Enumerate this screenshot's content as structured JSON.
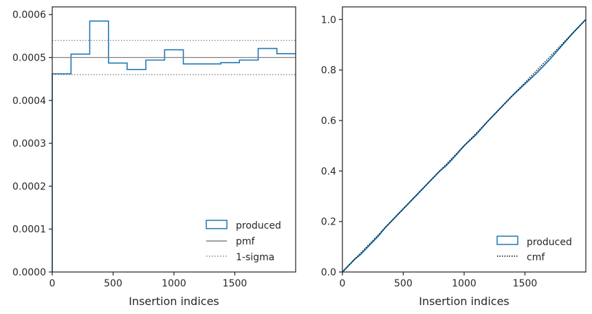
{
  "chart_data": [
    {
      "type": "histogram-step",
      "xlabel": "Insertion indices",
      "ylabel": "",
      "xlim": [
        0,
        2000
      ],
      "ylim": [
        0,
        0.000618
      ],
      "xticks": [
        0,
        500,
        1000,
        1500
      ],
      "xtick_labels": [
        "0",
        "500",
        "1000",
        "1500"
      ],
      "yticks": [
        0,
        0.0001,
        0.0002,
        0.0003,
        0.0004,
        0.0005,
        0.0006
      ],
      "ytick_labels": [
        "0.0000",
        "0.0001",
        "0.0002",
        "0.0003",
        "0.0004",
        "0.0005",
        "0.0006"
      ],
      "grid": false,
      "legend_position": "lower-right",
      "series": [
        {
          "name": "produced",
          "kind": "step",
          "color": "#1f77b4",
          "bin_edges": [
            0,
            154,
            308,
            462,
            615,
            769,
            923,
            1077,
            1231,
            1385,
            1538,
            1692,
            1846,
            2000
          ],
          "values": [
            0.000462,
            0.000508,
            0.000585,
            0.000487,
            0.000472,
            0.000494,
            0.000518,
            0.000485,
            0.000485,
            0.000488,
            0.000494,
            0.000521,
            0.000509
          ]
        },
        {
          "name": "pmf",
          "kind": "hline",
          "color": "#808080",
          "value": 0.0005
        },
        {
          "name": "1-sigma",
          "kind": "hlines-dotted",
          "color": "#808080",
          "values": [
            0.00046,
            0.00054
          ]
        }
      ]
    },
    {
      "type": "line",
      "xlabel": "Insertion indices",
      "ylabel": "",
      "xlim": [
        0,
        2000
      ],
      "ylim": [
        0,
        1.05
      ],
      "xticks": [
        0,
        500,
        1000,
        1500
      ],
      "xtick_labels": [
        "0",
        "500",
        "1000",
        "1500"
      ],
      "yticks": [
        0,
        0.2,
        0.4,
        0.6,
        0.8,
        1.0
      ],
      "ytick_labels": [
        "0.0",
        "0.2",
        "0.4",
        "0.6",
        "0.8",
        "1.0"
      ],
      "grid": false,
      "legend_position": "lower-right",
      "series": [
        {
          "name": "produced",
          "kind": "line",
          "color": "#1f77b4",
          "x": [
            0,
            50,
            100,
            150,
            200,
            250,
            300,
            350,
            400,
            450,
            500,
            600,
            700,
            800,
            850,
            900,
            1000,
            1100,
            1200,
            1300,
            1400,
            1500,
            1600,
            1700,
            1800,
            1900,
            2000
          ],
          "y": [
            0,
            0.025,
            0.05,
            0.07,
            0.095,
            0.12,
            0.145,
            0.175,
            0.2,
            0.225,
            0.25,
            0.3,
            0.35,
            0.4,
            0.42,
            0.445,
            0.5,
            0.545,
            0.6,
            0.65,
            0.7,
            0.745,
            0.79,
            0.84,
            0.895,
            0.95,
            1.0
          ]
        },
        {
          "name": "cmf",
          "kind": "dotted-line",
          "color": "#000000",
          "x": [
            0,
            2000
          ],
          "y": [
            0,
            1.0
          ]
        }
      ]
    }
  ]
}
